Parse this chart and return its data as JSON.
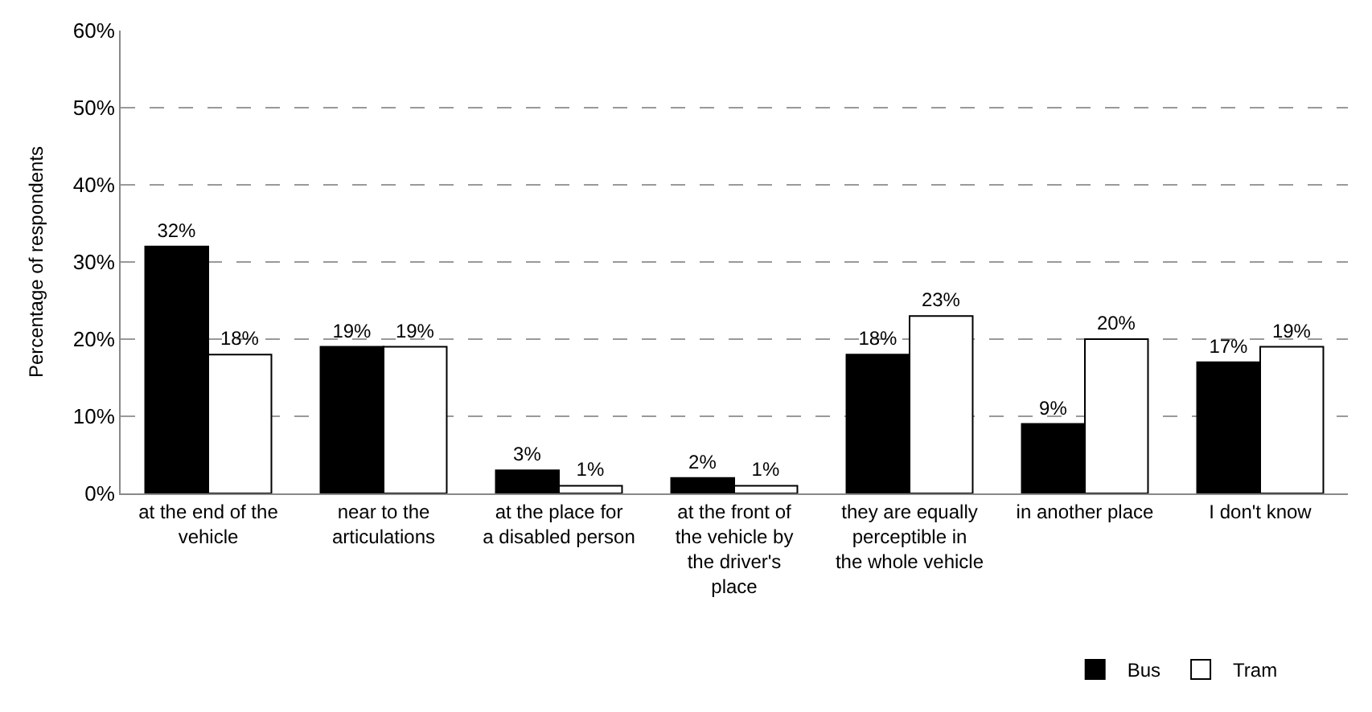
{
  "chart_data": {
    "type": "bar",
    "ylabel": "Percentage of respondents",
    "categories": [
      "at the end of the vehicle",
      "near to the articulations",
      "at the place for a disabled person",
      "at the front of the vehicle by the driver's place",
      "they are equally perceptible in the whole vehicle",
      "in another place",
      "I don't know"
    ],
    "series": [
      {
        "name": "Bus",
        "color": "#000000",
        "values": [
          32,
          19,
          3,
          2,
          18,
          9,
          17
        ],
        "value_labels": [
          "32%",
          "19%",
          "3%",
          "2%",
          "18%",
          "9%",
          "17%"
        ]
      },
      {
        "name": "Tram",
        "color": "#ffffff",
        "values": [
          18,
          19,
          1,
          1,
          23,
          20,
          19
        ],
        "value_labels": [
          "18%",
          "19%",
          "1%",
          "1%",
          "23%",
          "20%",
          "19%"
        ]
      }
    ],
    "ylim": [
      0,
      60
    ],
    "yticks": [
      {
        "value": 0,
        "label": "0%"
      },
      {
        "value": 10,
        "label": "10%"
      },
      {
        "value": 20,
        "label": "20%"
      },
      {
        "value": 30,
        "label": "30%"
      },
      {
        "value": 40,
        "label": "40%"
      },
      {
        "value": 50,
        "label": "50%"
      },
      {
        "value": 60,
        "label": "60%"
      }
    ],
    "grid": "y",
    "legend": "bottom right"
  }
}
